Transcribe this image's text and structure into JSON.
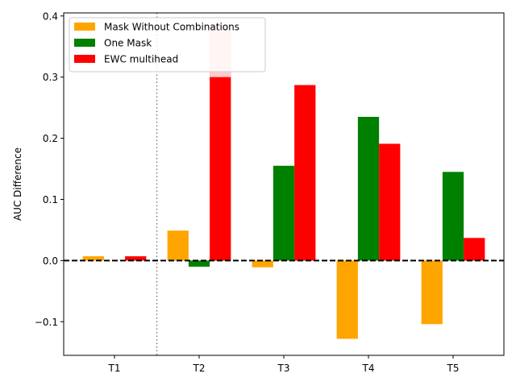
{
  "chart_data": {
    "type": "bar",
    "title": "",
    "xlabel": "",
    "ylabel": "AUC Difference",
    "categories": [
      "T1",
      "T2",
      "T3",
      "T4",
      "T5"
    ],
    "series": [
      {
        "name": "Mask Without Combinations",
        "color": "#ffa500",
        "values": [
          0.007,
          0.049,
          -0.011,
          -0.128,
          -0.104
        ]
      },
      {
        "name": "One Mask",
        "color": "#008000",
        "values": [
          0.0,
          -0.01,
          0.155,
          0.235,
          0.145
        ]
      },
      {
        "name": "EWC multihead",
        "color": "#ff0000",
        "values": [
          0.007,
          0.385,
          0.287,
          0.191,
          0.037
        ]
      }
    ],
    "ylim": [
      -0.155,
      0.405
    ],
    "yticks": [
      -0.1,
      0.0,
      0.1,
      0.2,
      0.3,
      0.4
    ],
    "ytick_labels": [
      "−0.1",
      "0.0",
      "0.1",
      "0.2",
      "0.3",
      "0.4"
    ],
    "reference_line": {
      "y": 0.0,
      "style": "dashed",
      "color": "#000000"
    },
    "separator": {
      "between": [
        "T1",
        "T2"
      ],
      "style": "dotted",
      "color": "#808080"
    },
    "highlight": {
      "category": "T2",
      "series": "EWC multihead",
      "range": [
        0.3,
        0.385
      ],
      "color": "#ffcccc"
    },
    "grid": false,
    "legend_position": "top-left"
  }
}
